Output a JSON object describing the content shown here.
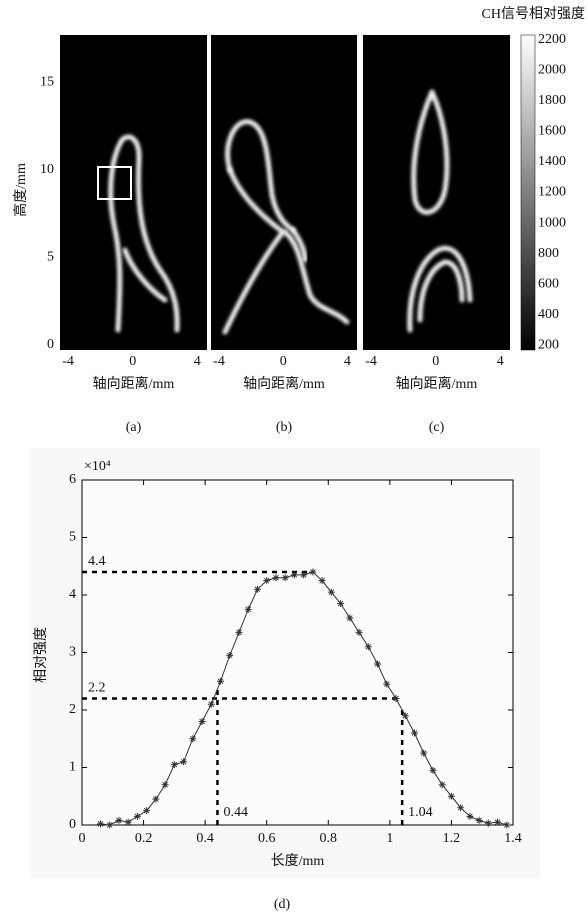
{
  "chart_data": [
    {
      "type": "image",
      "caption": "(a)",
      "xlabel": "轴向距离/mm",
      "ylabel": "高度/mm",
      "xlim": [
        -4.5,
        4.6
      ],
      "xticks": [
        -4,
        0,
        4
      ],
      "ylim": [
        -0.3,
        17.7
      ],
      "yticks": [
        0,
        5,
        10,
        15
      ]
    },
    {
      "type": "image",
      "caption": "(b)",
      "xlabel": "轴向距离/mm",
      "xlim": [
        -4.5,
        4.6
      ],
      "xticks": [
        -4,
        0,
        4
      ]
    },
    {
      "type": "image",
      "caption": "(c)",
      "xlabel": "轴向距离/mm",
      "xlim": [
        -4.5,
        4.6
      ],
      "xticks": [
        -4,
        0,
        4
      ]
    },
    {
      "type": "colorbar",
      "title": "CH信号相对强度",
      "clim": [
        170,
        2230
      ],
      "ticks": [
        200,
        400,
        600,
        800,
        1000,
        1200,
        1400,
        1600,
        1800,
        2000,
        2200
      ]
    },
    {
      "type": "line",
      "caption": "(d)",
      "xlabel": "长度/mm",
      "ylabel": "相对强度",
      "y_multiplier": "×10⁴",
      "xlim": [
        0,
        1.4
      ],
      "xticks": [
        0,
        0.2,
        0.4,
        0.6,
        0.8,
        1,
        1.2,
        1.4
      ],
      "ylim": [
        0,
        6
      ],
      "yticks": [
        0,
        1,
        2,
        3,
        4,
        5,
        6
      ],
      "color": "#333333",
      "hlines": [
        4.4,
        2.2
      ],
      "vlines": [
        0.44,
        1.04
      ],
      "x": [
        0.06,
        0.09,
        0.12,
        0.15,
        0.18,
        0.21,
        0.24,
        0.27,
        0.3,
        0.33,
        0.36,
        0.39,
        0.42,
        0.45,
        0.48,
        0.51,
        0.54,
        0.57,
        0.6,
        0.63,
        0.66,
        0.69,
        0.72,
        0.75,
        0.78,
        0.81,
        0.84,
        0.87,
        0.9,
        0.93,
        0.96,
        0.99,
        1.02,
        1.05,
        1.08,
        1.11,
        1.14,
        1.17,
        1.2,
        1.23,
        1.26,
        1.29,
        1.32,
        1.35,
        1.38
      ],
      "values": [
        0.02,
        0.0,
        0.08,
        0.05,
        0.15,
        0.25,
        0.45,
        0.7,
        1.05,
        1.1,
        1.5,
        1.8,
        2.1,
        2.5,
        2.95,
        3.35,
        3.75,
        4.1,
        4.25,
        4.3,
        4.3,
        4.35,
        4.35,
        4.4,
        4.25,
        4.05,
        3.85,
        3.6,
        3.35,
        3.1,
        2.8,
        2.45,
        2.2,
        1.9,
        1.6,
        1.25,
        0.95,
        0.7,
        0.5,
        0.3,
        0.15,
        0.08,
        0.03,
        0.05,
        0.0
      ]
    }
  ]
}
